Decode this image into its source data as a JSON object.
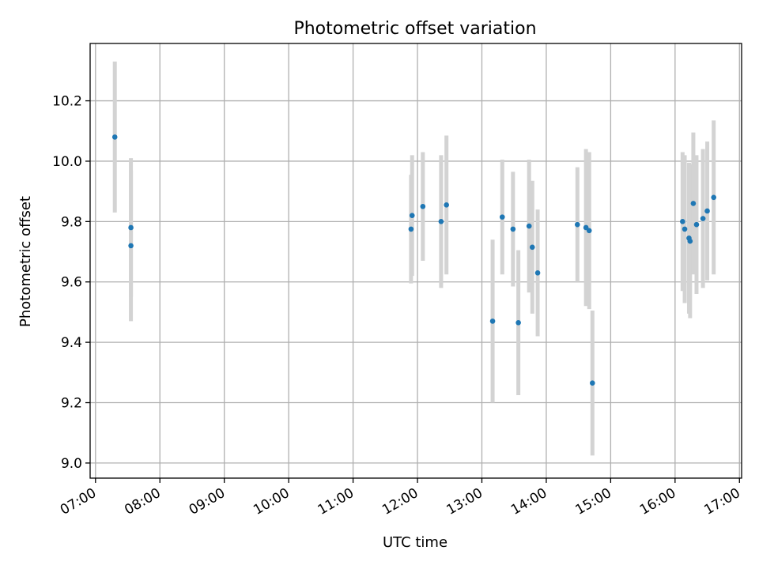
{
  "chart_data": {
    "type": "scatter",
    "title": "Photometric offset variation",
    "xlabel": "UTC time",
    "ylabel": "Photometric offset",
    "x_tick_labels": [
      "07:00",
      "08:00",
      "09:00",
      "10:00",
      "11:00",
      "12:00",
      "13:00",
      "14:00",
      "15:00",
      "16:00",
      "17:00"
    ],
    "y_tick_labels": [
      "9.0",
      "9.2",
      "9.4",
      "9.6",
      "9.8",
      "10.0",
      "10.2"
    ],
    "xlim": [
      "06:55",
      "17:02"
    ],
    "ylim": [
      8.95,
      10.39
    ],
    "grid": true,
    "colors": {
      "marker": "#1f77b4",
      "errorbar": "#d3d3d3",
      "grid": "#b0b0b0"
    },
    "points": [
      {
        "x": "07:18",
        "y": 10.08,
        "yerr": 0.25
      },
      {
        "x": "07:33",
        "y": 9.78,
        "yerr": 0.23
      },
      {
        "x": "07:33",
        "y": 9.72,
        "yerr": 0.25
      },
      {
        "x": "11:54",
        "y": 9.775,
        "yerr": 0.18
      },
      {
        "x": "11:55",
        "y": 9.82,
        "yerr": 0.2
      },
      {
        "x": "12:05",
        "y": 9.85,
        "yerr": 0.18
      },
      {
        "x": "12:22",
        "y": 9.8,
        "yerr": 0.22
      },
      {
        "x": "12:27",
        "y": 9.855,
        "yerr": 0.23
      },
      {
        "x": "13:10",
        "y": 9.47,
        "yerr": 0.27
      },
      {
        "x": "13:19",
        "y": 9.815,
        "yerr": 0.19
      },
      {
        "x": "13:29",
        "y": 9.775,
        "yerr": 0.19
      },
      {
        "x": "13:34",
        "y": 9.465,
        "yerr": 0.24
      },
      {
        "x": "13:44",
        "y": 9.785,
        "yerr": 0.22
      },
      {
        "x": "13:47",
        "y": 9.715,
        "yerr": 0.22
      },
      {
        "x": "13:52",
        "y": 9.63,
        "yerr": 0.21
      },
      {
        "x": "14:29",
        "y": 9.79,
        "yerr": 0.19
      },
      {
        "x": "14:37",
        "y": 9.78,
        "yerr": 0.26
      },
      {
        "x": "14:40",
        "y": 9.77,
        "yerr": 0.26
      },
      {
        "x": "14:43",
        "y": 9.265,
        "yerr": 0.24
      },
      {
        "x": "16:07",
        "y": 9.8,
        "yerr": 0.23
      },
      {
        "x": "16:09",
        "y": 9.775,
        "yerr": 0.245
      },
      {
        "x": "16:13",
        "y": 9.745,
        "yerr": 0.25
      },
      {
        "x": "16:14",
        "y": 9.735,
        "yerr": 0.255
      },
      {
        "x": "16:17",
        "y": 9.86,
        "yerr": 0.235
      },
      {
        "x": "16:20",
        "y": 9.79,
        "yerr": 0.23
      },
      {
        "x": "16:26",
        "y": 9.81,
        "yerr": 0.23
      },
      {
        "x": "16:30",
        "y": 9.835,
        "yerr": 0.23
      },
      {
        "x": "16:36",
        "y": 9.88,
        "yerr": 0.255
      }
    ]
  }
}
